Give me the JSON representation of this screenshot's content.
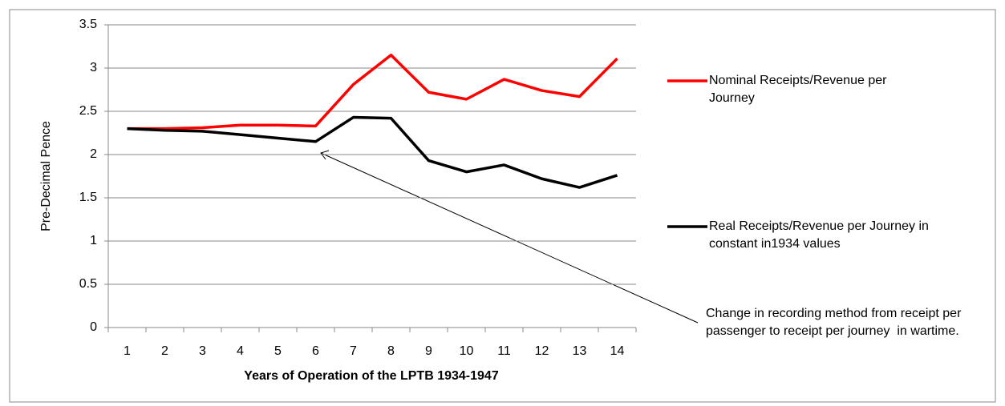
{
  "chart_data": {
    "type": "line",
    "x_label": "Years of Operation of the LPTB 1934-1947",
    "y_label": "Pre-Decimal Pence",
    "categories": [
      "1",
      "2",
      "3",
      "4",
      "5",
      "6",
      "7",
      "8",
      "9",
      "10",
      "11",
      "12",
      "13",
      "14"
    ],
    "series": [
      {
        "name": "Nominal Receipts/Revenue per Journey",
        "color": "#ff0000",
        "values": [
          2.3,
          2.3,
          2.31,
          2.34,
          2.34,
          2.33,
          2.81,
          3.15,
          2.72,
          2.64,
          2.87,
          2.74,
          2.67,
          3.11
        ]
      },
      {
        "name": "Real Receipts/Revenue per Journey in constant in1934 values",
        "color": "#000000",
        "values": [
          2.3,
          2.28,
          2.27,
          2.23,
          2.19,
          2.15,
          2.43,
          2.42,
          1.93,
          1.8,
          1.88,
          1.72,
          1.62,
          1.76
        ]
      }
    ],
    "ylim": [
      0,
      3.5
    ],
    "yticks": [
      0,
      0.5,
      1,
      1.5,
      2,
      2.5,
      3,
      3.5
    ],
    "grid": true,
    "legend": "right",
    "annotation": "Change in recording method from receipt per passenger to receipt per journey  in wartime."
  }
}
